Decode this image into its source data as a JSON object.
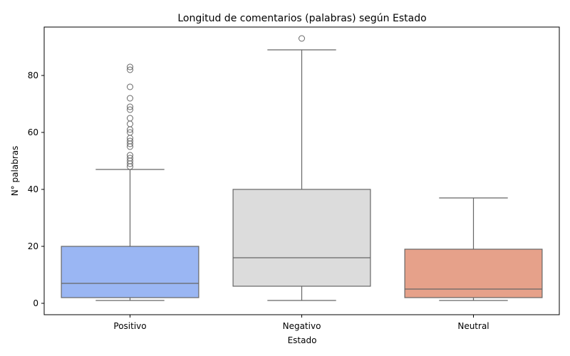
{
  "chart_data": {
    "type": "box",
    "title": "Longitud de comentarios (palabras) según Estado",
    "xlabel": "Estado",
    "ylabel": "N° palabras",
    "ylim": [
      -4,
      97
    ],
    "yticks": [
      0,
      20,
      40,
      60,
      80
    ],
    "grid": false,
    "categories": [
      "Positivo",
      "Negativo",
      "Neutral"
    ],
    "series": [
      {
        "category": "Positivo",
        "color": "#9ab6f3",
        "whisker_low": 1,
        "q1": 2,
        "median": 7,
        "q3": 20,
        "whisker_high": 47,
        "outliers": [
          48,
          49,
          50,
          51,
          52,
          55,
          56,
          57,
          58,
          60,
          61,
          63,
          65,
          68,
          69,
          72,
          76,
          82,
          83
        ]
      },
      {
        "category": "Negativo",
        "color": "#dcdcdc",
        "whisker_low": 1,
        "q1": 6,
        "median": 16,
        "q3": 40,
        "whisker_high": 89,
        "outliers": [
          93
        ]
      },
      {
        "category": "Neutral",
        "color": "#e6a18a",
        "whisker_low": 1,
        "q1": 2,
        "median": 5,
        "q3": 19,
        "whisker_high": 37,
        "outliers": []
      }
    ]
  }
}
